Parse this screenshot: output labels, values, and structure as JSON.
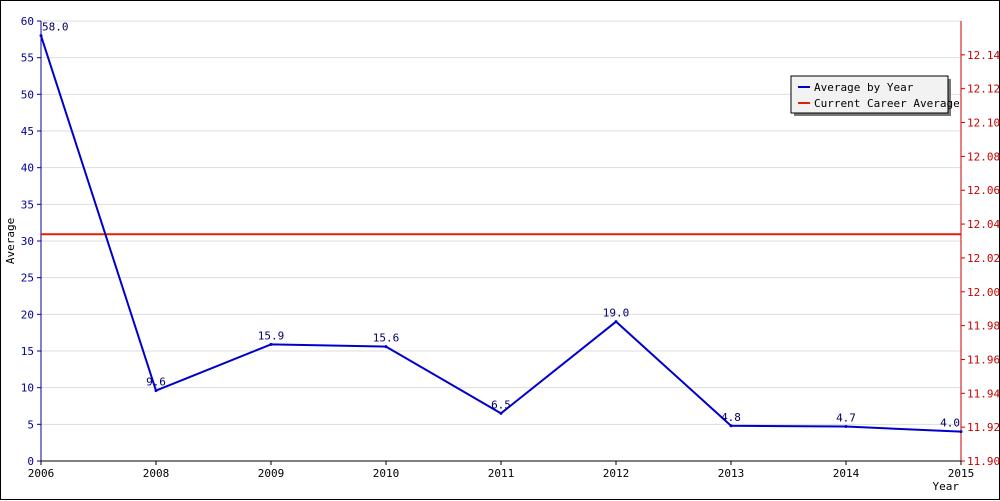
{
  "chart_data": {
    "type": "line",
    "x_labels": [
      "2006",
      "2008",
      "2009",
      "2010",
      "2011",
      "2012",
      "2013",
      "2014",
      "2015"
    ],
    "xlabel": "Year",
    "ylabel": "Average",
    "y_left_range": [
      0,
      60
    ],
    "y_left_ticks": [
      "0",
      "5",
      "10",
      "15",
      "20",
      "25",
      "30",
      "35",
      "40",
      "45",
      "50",
      "55",
      "60"
    ],
    "y_right_range": [
      11.9,
      12.16
    ],
    "y_right_ticks": [
      "11.90",
      "11.92",
      "11.94",
      "11.96",
      "11.98",
      "12.00",
      "12.02",
      "12.04",
      "12.06",
      "12.08",
      "12.10",
      "12.12",
      "12.14"
    ],
    "series": [
      {
        "name": "Average by Year",
        "values": [
          58.0,
          9.6,
          15.9,
          15.6,
          6.5,
          19.0,
          4.8,
          4.7,
          4.0
        ],
        "labels": [
          "58.0",
          "9.6",
          "15.9",
          "15.6",
          "6.5",
          "19.0",
          "4.8",
          "4.7",
          "4.0"
        ],
        "color": "#0000cc",
        "axis": "left"
      },
      {
        "name": "Current Career Average",
        "value": 12.034,
        "color": "#dd2200",
        "axis": "right"
      }
    ],
    "grid": true,
    "legend_position": "top-right",
    "left_axis_color": "#000099",
    "right_axis_color": "#cc0000"
  }
}
